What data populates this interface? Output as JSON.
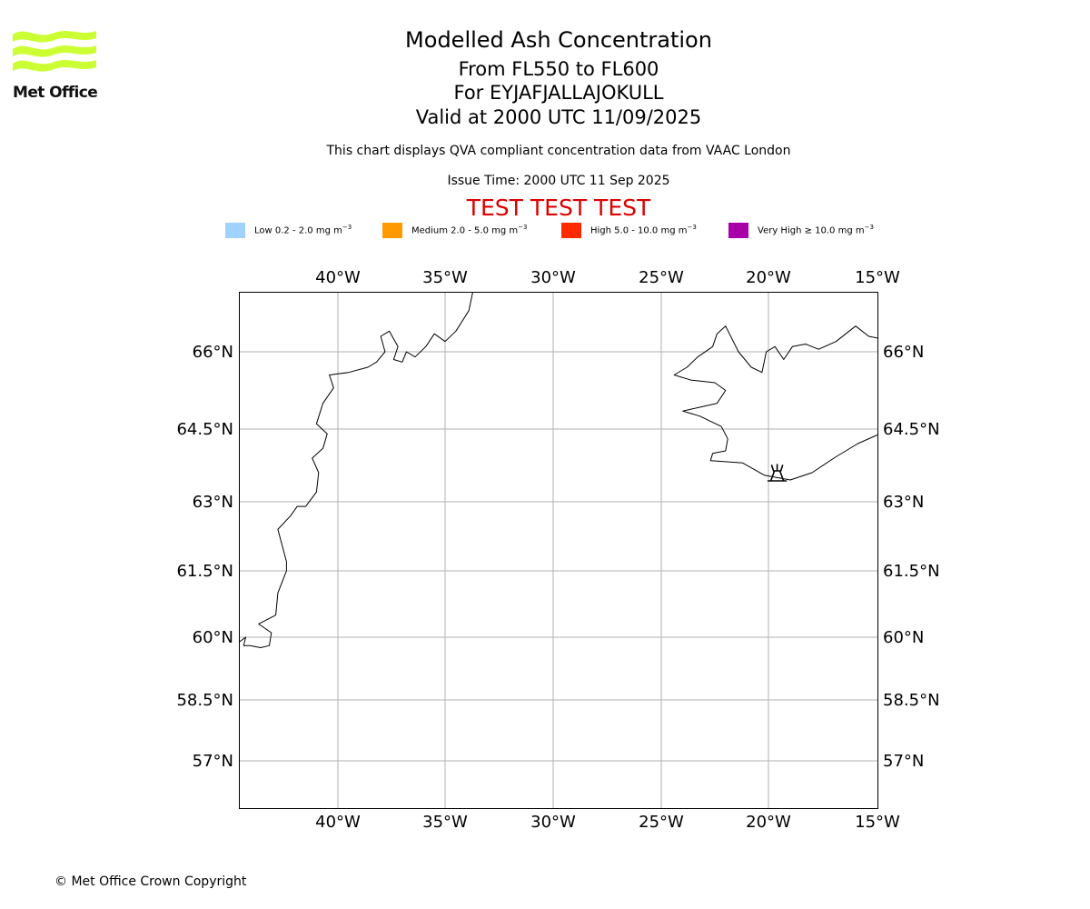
{
  "logo": {
    "text": "Met Office",
    "wave_color": "#ccff33"
  },
  "header": {
    "title": "Modelled Ash Concentration",
    "level_range": "From FL550 to FL600",
    "volcano_line": "For EYJAFJALLAJOKULL",
    "valid_line": "Valid at 2000 UTC 11/09/2025",
    "description": "This chart displays QVA compliant concentration data from VAAC London",
    "issue_time": "Issue Time: 2000 UTC 11 Sep 2025",
    "test_banner": "TEST TEST TEST",
    "test_color": "#dd0000"
  },
  "legend": [
    {
      "label": "Low 0.2 - 2.0 mg m",
      "unit_exp": "−3",
      "color": "#a0d2ff"
    },
    {
      "label": "Medium 2.0 - 5.0 mg m",
      "unit_exp": "−3",
      "color": "#ff9900"
    },
    {
      "label": "High 5.0 - 10.0 mg m",
      "unit_exp": "−3",
      "color": "#ff2a00"
    },
    {
      "label": "Very High  ≥  10.0 mg m",
      "unit_exp": "−3",
      "color": "#aa00aa"
    }
  ],
  "map": {
    "lon_range": [
      -44.6,
      -14.9
    ],
    "lat_range": [
      55.9,
      67.0
    ],
    "projection": "polar-stereographic",
    "lon_ticks": [
      {
        "value": -40,
        "label": "40°W"
      },
      {
        "value": -35,
        "label": "35°W"
      },
      {
        "value": -30,
        "label": "30°W"
      },
      {
        "value": -25,
        "label": "25°W"
      },
      {
        "value": -20,
        "label": "20°W"
      },
      {
        "value": -15,
        "label": "15°W"
      }
    ],
    "lat_ticks": [
      {
        "value": 66,
        "label": "66°N"
      },
      {
        "value": 64.5,
        "label": "64.5°N"
      },
      {
        "value": 63,
        "label": "63°N"
      },
      {
        "value": 61.5,
        "label": "61.5°N"
      },
      {
        "value": 60,
        "label": "60°N"
      },
      {
        "value": 58.5,
        "label": "58.5°N"
      },
      {
        "value": 57,
        "label": "57°N"
      }
    ],
    "grid": true,
    "grid_color": "#b0b0b0",
    "coastline_color": "#000000",
    "volcano": {
      "name": "EYJAFJALLAJOKULL",
      "lon": -19.6,
      "lat": 63.6,
      "icon": "volcano-icon"
    },
    "greenland_coast": [
      [
        -33.6,
        67.4
      ],
      [
        -33.9,
        66.8
      ],
      [
        -34.5,
        66.4
      ],
      [
        -35.0,
        66.2
      ],
      [
        -35.5,
        66.35
      ],
      [
        -35.9,
        66.1
      ],
      [
        -36.4,
        65.9
      ],
      [
        -36.8,
        66.0
      ],
      [
        -37.0,
        65.8
      ],
      [
        -37.4,
        65.85
      ],
      [
        -37.2,
        66.1
      ],
      [
        -37.6,
        66.4
      ],
      [
        -38.0,
        66.3
      ],
      [
        -37.8,
        66.0
      ],
      [
        -38.2,
        65.8
      ],
      [
        -38.6,
        65.7
      ],
      [
        -39.5,
        65.6
      ],
      [
        -40.4,
        65.55
      ],
      [
        -40.2,
        65.3
      ],
      [
        -40.7,
        65.0
      ],
      [
        -41.0,
        64.6
      ],
      [
        -40.5,
        64.4
      ],
      [
        -40.7,
        64.1
      ],
      [
        -41.2,
        63.9
      ],
      [
        -40.9,
        63.6
      ],
      [
        -41.0,
        63.2
      ],
      [
        -41.5,
        62.9
      ],
      [
        -41.9,
        62.9
      ],
      [
        -42.2,
        62.7
      ],
      [
        -42.8,
        62.4
      ],
      [
        -42.4,
        61.7
      ],
      [
        -42.4,
        61.5
      ],
      [
        -42.8,
        61.0
      ],
      [
        -42.9,
        60.5
      ],
      [
        -43.7,
        60.3
      ],
      [
        -43.1,
        60.1
      ],
      [
        -43.2,
        59.8
      ],
      [
        -43.6,
        59.75
      ],
      [
        -44.1,
        59.8
      ],
      [
        -44.4,
        59.8
      ],
      [
        -44.3,
        60.0
      ],
      [
        -44.7,
        59.85
      ]
    ],
    "iceland_coast": [
      [
        -22.7,
        63.85
      ],
      [
        -22.6,
        64.0
      ],
      [
        -22.0,
        64.05
      ],
      [
        -21.9,
        64.3
      ],
      [
        -22.2,
        64.55
      ],
      [
        -23.2,
        64.75
      ],
      [
        -24.0,
        64.85
      ],
      [
        -22.4,
        65.0
      ],
      [
        -22.0,
        65.25
      ],
      [
        -22.5,
        65.4
      ],
      [
        -23.6,
        65.45
      ],
      [
        -24.4,
        65.55
      ],
      [
        -23.8,
        65.7
      ],
      [
        -23.3,
        65.9
      ],
      [
        -22.6,
        66.1
      ],
      [
        -22.4,
        66.35
      ],
      [
        -22.0,
        66.5
      ],
      [
        -21.4,
        66.0
      ],
      [
        -20.8,
        65.7
      ],
      [
        -20.3,
        65.6
      ],
      [
        -20.1,
        66.0
      ],
      [
        -19.7,
        66.1
      ],
      [
        -19.3,
        65.85
      ],
      [
        -18.9,
        66.1
      ],
      [
        -18.3,
        66.15
      ],
      [
        -17.7,
        66.05
      ],
      [
        -16.9,
        66.2
      ],
      [
        -16.0,
        66.5
      ],
      [
        -15.4,
        66.3
      ],
      [
        -14.8,
        66.25
      ],
      [
        -14.5,
        65.8
      ],
      [
        -13.6,
        65.3
      ],
      [
        -14.0,
        64.9
      ],
      [
        -14.9,
        64.4
      ],
      [
        -15.9,
        64.2
      ],
      [
        -17.0,
        63.9
      ],
      [
        -18.0,
        63.6
      ],
      [
        -19.0,
        63.45
      ],
      [
        -20.2,
        63.55
      ],
      [
        -21.2,
        63.8
      ],
      [
        -22.7,
        63.85
      ]
    ]
  },
  "footer": {
    "copyright": "© Met Office Crown Copyright"
  }
}
